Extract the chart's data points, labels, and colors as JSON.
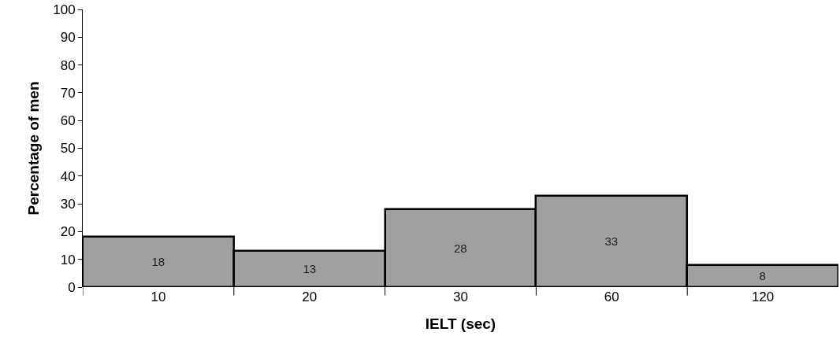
{
  "chart_data": {
    "type": "bar",
    "xlabel": "IELT (sec)",
    "ylabel": "Percentage of men",
    "categories": [
      "10",
      "20",
      "30",
      "60",
      "120"
    ],
    "values": [
      18,
      13,
      28,
      33,
      8
    ],
    "color": "#a0a0a0",
    "ylim": [
      0,
      100
    ],
    "yticks": [
      0,
      10,
      20,
      30,
      40,
      50,
      60,
      70,
      80,
      90,
      100
    ],
    "data_labels": true
  }
}
